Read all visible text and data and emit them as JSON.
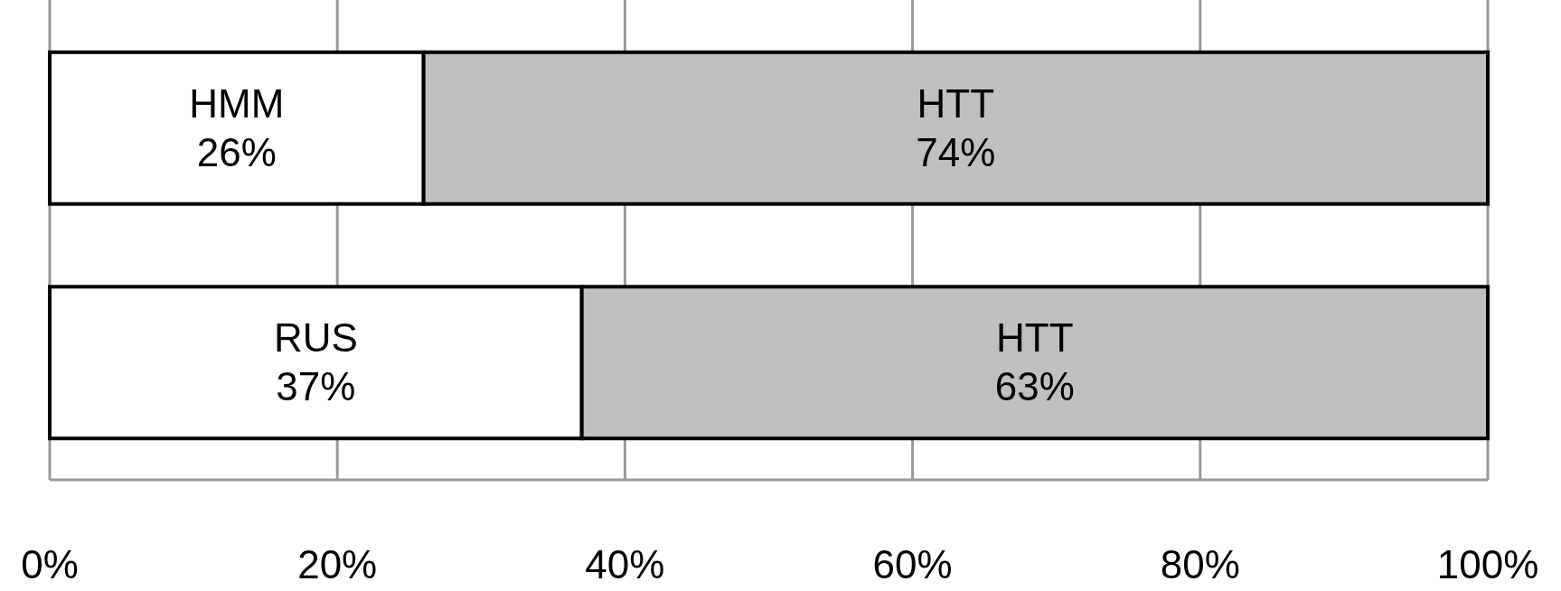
{
  "chart_data": {
    "type": "bar",
    "orientation": "horizontal",
    "stacked": true,
    "categories": [
      null,
      null
    ],
    "series": [
      {
        "color": "#ffffff",
        "values": [
          26,
          37
        ],
        "value_labels": [
          "HMM\n26%",
          "RUS\n37%"
        ]
      },
      {
        "color": "#c0c0c0",
        "values": [
          74,
          63
        ],
        "value_labels": [
          "HTT\n74%",
          "HTT\n63%"
        ]
      }
    ],
    "xlim": [
      0,
      100
    ],
    "xticks": [
      {
        "value": 0,
        "label": "0%"
      },
      {
        "value": 20,
        "label": "20%"
      },
      {
        "value": 40,
        "label": "40%"
      },
      {
        "value": 60,
        "label": "60%"
      },
      {
        "value": 80,
        "label": "80%"
      },
      {
        "value": 100,
        "label": "100%"
      }
    ],
    "grid": "x"
  }
}
